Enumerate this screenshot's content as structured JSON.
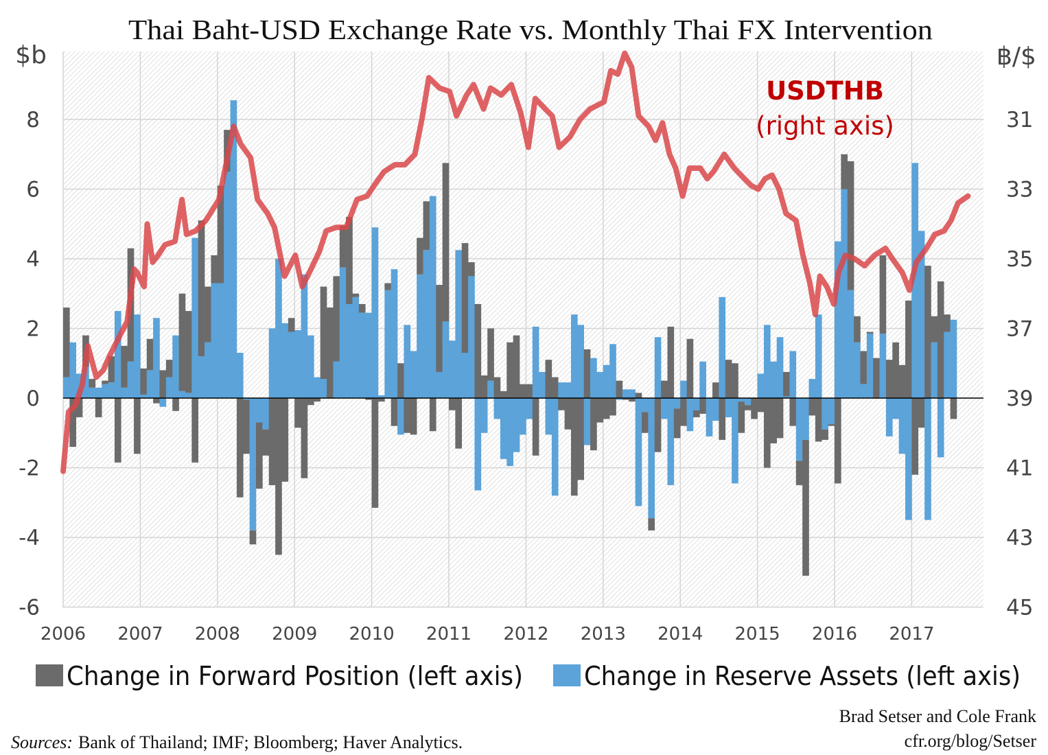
{
  "title": "Thai Baht-USD Exchange Rate vs. Monthly Thai FX Intervention",
  "left_axis_unit": "$b",
  "right_axis_unit": "฿/$",
  "annotation": {
    "line1": "USDTHB",
    "line2": "(right axis)",
    "color": "#c00000"
  },
  "legend": [
    {
      "label": "Change in Forward Position (left axis)",
      "color": "#6b6b6b"
    },
    {
      "label": "Change in Reserve Assets (left axis)",
      "color": "#5ba3d9"
    }
  ],
  "credit": {
    "authors": "Brad Setser and Cole Frank",
    "url": "cfr.org/blog/Setser"
  },
  "sources": {
    "label": "Sources:",
    "text": "Bank of Thailand; IMF; Bloomberg; Haver Analytics."
  },
  "chart_data": {
    "type": "bar+line",
    "title": "Thai Baht-USD Exchange Rate vs. Monthly Thai FX Intervention",
    "bar_mode": "stacked, monthly",
    "left_axis": {
      "label": "$b",
      "ylim": [
        -6,
        10
      ],
      "ticks": [
        "-6",
        "-4",
        "-2",
        "0",
        "2",
        "4",
        "6",
        "8"
      ]
    },
    "right_axis": {
      "label": "฿/$",
      "ylim": [
        45,
        29
      ],
      "inverted": true,
      "ticks": [
        "31",
        "33",
        "35",
        "37",
        "39",
        "41",
        "43",
        "45"
      ]
    },
    "x_axis": {
      "ticks": [
        "2006",
        "2007",
        "2008",
        "2009",
        "2010",
        "2011",
        "2012",
        "2013",
        "2014",
        "2015",
        "2016",
        "2017"
      ],
      "range": [
        2006,
        2017.92
      ]
    },
    "grid": true,
    "legend_position": "bottom",
    "bar_series_names": {
      "forward": "Change in Forward Position (left axis)",
      "reserve": "Change in Reserve Assets (left axis)"
    },
    "bars": [
      {
        "year": 2006,
        "reserve": [
          0.6,
          1.6,
          0.7,
          0.9,
          0.3,
          0.3,
          0.4,
          0.45,
          2.5,
          0.3,
          1.05,
          2.4
        ],
        "forward": [
          2.0,
          -1.4,
          -0.55,
          0.9,
          0.25,
          -0.55,
          0.1,
          0.75,
          -1.85,
          1.2,
          3.25,
          -1.6
        ]
      },
      {
        "year": 2007,
        "reserve": [
          0.1,
          0.8,
          2.3,
          -0.25,
          0.6,
          1.8,
          0.2,
          0.15,
          4.6,
          1.2,
          1.6,
          3.3
        ],
        "forward": [
          0.75,
          0.9,
          -0.15,
          0.8,
          0.5,
          -0.37,
          2.8,
          2.35,
          -1.85,
          3.9,
          1.6,
          0.8
        ]
      },
      {
        "year": 2008,
        "reserve": [
          3.3,
          6.5,
          8.55,
          1.3,
          -0.05,
          -3.8,
          -0.7,
          -0.9,
          2.0,
          4.0,
          2.15,
          1.9
        ],
        "forward": [
          2.8,
          1.2,
          0,
          -2.85,
          -1.55,
          -0.4,
          -1.9,
          -0.75,
          -2.5,
          -4.5,
          -2.4,
          0.4
        ]
      },
      {
        "year": 2009,
        "reserve": [
          1.95,
          3.55,
          1.8,
          0.6,
          0.55,
          0,
          1.05,
          3.75,
          2.7,
          2.9,
          2.45,
          2.45
        ],
        "forward": [
          -0.85,
          -2.3,
          -0.2,
          -0.1,
          2.65,
          2.6,
          2.45,
          1.2,
          2.5,
          0.1,
          0.25,
          -0.05
        ]
      },
      {
        "year": 2010,
        "reserve": [
          4.9,
          0.08,
          3.1,
          3.7,
          -1.05,
          2.1,
          1.35,
          3.55,
          4.25,
          5.8,
          0.75,
          2.2
        ],
        "forward": [
          -3.15,
          -0.1,
          0.2,
          -0.8,
          1.0,
          -1.0,
          -1.05,
          1.05,
          1.4,
          -0.95,
          2.5,
          4.55
        ]
      },
      {
        "year": 2011,
        "reserve": [
          1.65,
          4.25,
          1.3,
          3.5,
          -2.65,
          -1.0,
          0.5,
          -0.6,
          -1.75,
          -1.95,
          -1.55,
          -1.05
        ],
        "forward": [
          -0.35,
          -1.45,
          3.15,
          0.4,
          2.7,
          0.65,
          1.5,
          0.6,
          0.2,
          1.6,
          1.8,
          0.4
        ]
      },
      {
        "year": 2012,
        "reserve": [
          -0.6,
          2.05,
          0.75,
          -1.05,
          -2.8,
          0.45,
          0.45,
          2.4,
          2.1,
          -1.35,
          1.15,
          0.75
        ],
        "forward": [
          0.4,
          -1.65,
          0,
          1.1,
          0.6,
          -0.35,
          -0.9,
          -2.8,
          -2.35,
          1.4,
          -1.5,
          -0.7
        ]
      },
      {
        "year": 2013,
        "reserve": [
          0.95,
          1.55,
          -0.05,
          0.25,
          0.25,
          -3.1,
          -0.4,
          -3.45,
          1.75,
          -0.6,
          -2.5,
          -0.3
        ],
        "forward": [
          -0.6,
          -0.5,
          0.5,
          -0.05,
          -0.1,
          0.15,
          -0.6,
          -0.35,
          -1.55,
          0.5,
          2.05,
          -0.85
        ]
      },
      {
        "year": 2014,
        "reserve": [
          0.5,
          -0.95,
          -0.35,
          1.05,
          -1.1,
          -0.65,
          2.9,
          -0.55,
          -2.45,
          -0.1,
          -0.2,
          0
        ],
        "forward": [
          -0.8,
          1.7,
          -0.2,
          -0.45,
          0,
          0.45,
          -1.2,
          1.1,
          1.0,
          -0.9,
          -0.15,
          -0.6
        ]
      },
      {
        "year": 2015,
        "reserve": [
          0.7,
          2.1,
          1.05,
          1.75,
          0.05,
          1.35,
          -1.8,
          -1.2,
          0.55,
          2.4,
          -0.9,
          -0.75
        ],
        "forward": [
          -0.4,
          -2.0,
          -1.3,
          -1.15,
          0.7,
          -0.8,
          -0.7,
          -3.9,
          -0.5,
          -1.25,
          -0.3,
          -0.05
        ]
      },
      {
        "year": 2016,
        "reserve": [
          4.5,
          6.0,
          3.1,
          1.6,
          0.4,
          1.85,
          0,
          1.85,
          -1.1,
          -0.6,
          -1.6,
          -3.5
        ],
        "forward": [
          -2.45,
          1.0,
          3.7,
          0.75,
          0.95,
          0.05,
          1.15,
          2.25,
          1.1,
          1.6,
          0.95,
          2.8
        ]
      },
      {
        "year": 2017,
        "reserve": [
          6.75,
          4.8,
          -3.5,
          1.6,
          -1.7,
          1.9,
          2.25
        ],
        "forward": [
          -2.2,
          -0.85,
          3.8,
          0.75,
          3.35,
          0.5,
          -0.6
        ]
      }
    ],
    "line": {
      "name": "USDTHB",
      "axis": "right",
      "color": "#d9484a",
      "points": [
        [
          2006.0,
          41.1
        ],
        [
          2006.07,
          39.4
        ],
        [
          2006.16,
          39.2
        ],
        [
          2006.25,
          38.6
        ],
        [
          2006.32,
          37.5
        ],
        [
          2006.43,
          38.4
        ],
        [
          2006.52,
          38.2
        ],
        [
          2006.6,
          37.8
        ],
        [
          2006.69,
          37.4
        ],
        [
          2006.83,
          36.8
        ],
        [
          2006.92,
          35.3
        ],
        [
          2006.96,
          35.4
        ],
        [
          2007.05,
          35.8
        ],
        [
          2007.09,
          34.0
        ],
        [
          2007.16,
          35.1
        ],
        [
          2007.23,
          34.9
        ],
        [
          2007.32,
          34.6
        ],
        [
          2007.45,
          34.5
        ],
        [
          2007.54,
          33.3
        ],
        [
          2007.6,
          34.3
        ],
        [
          2007.72,
          34.2
        ],
        [
          2007.85,
          33.9
        ],
        [
          2008.02,
          33.3
        ],
        [
          2008.12,
          32.2
        ],
        [
          2008.21,
          31.2
        ],
        [
          2008.3,
          31.7
        ],
        [
          2008.43,
          32.1
        ],
        [
          2008.52,
          33.3
        ],
        [
          2008.65,
          33.7
        ],
        [
          2008.74,
          34.1
        ],
        [
          2008.87,
          35.5
        ],
        [
          2009.01,
          34.9
        ],
        [
          2009.1,
          35.8
        ],
        [
          2009.19,
          35.4
        ],
        [
          2009.32,
          34.8
        ],
        [
          2009.41,
          34.2
        ],
        [
          2009.54,
          34.1
        ],
        [
          2009.67,
          34.1
        ],
        [
          2009.81,
          33.3
        ],
        [
          2009.94,
          33.2
        ],
        [
          2010.03,
          32.9
        ],
        [
          2010.16,
          32.5
        ],
        [
          2010.3,
          32.3
        ],
        [
          2010.43,
          32.3
        ],
        [
          2010.56,
          32.0
        ],
        [
          2010.65,
          31.0
        ],
        [
          2010.74,
          29.8
        ],
        [
          2010.88,
          30.1
        ],
        [
          2011.01,
          30.2
        ],
        [
          2011.1,
          30.9
        ],
        [
          2011.23,
          30.3
        ],
        [
          2011.32,
          30.0
        ],
        [
          2011.45,
          30.7
        ],
        [
          2011.54,
          30.1
        ],
        [
          2011.68,
          30.3
        ],
        [
          2011.81,
          30.0
        ],
        [
          2011.93,
          30.8
        ],
        [
          2012.03,
          31.8
        ],
        [
          2012.12,
          30.4
        ],
        [
          2012.25,
          30.7
        ],
        [
          2012.34,
          30.9
        ],
        [
          2012.43,
          31.8
        ],
        [
          2012.57,
          31.5
        ],
        [
          2012.7,
          31.0
        ],
        [
          2012.83,
          30.7
        ],
        [
          2013.01,
          30.5
        ],
        [
          2013.1,
          29.6
        ],
        [
          2013.19,
          29.7
        ],
        [
          2013.28,
          29.1
        ],
        [
          2013.37,
          29.5
        ],
        [
          2013.46,
          30.9
        ],
        [
          2013.59,
          31.2
        ],
        [
          2013.68,
          31.6
        ],
        [
          2013.77,
          31.1
        ],
        [
          2013.86,
          32.0
        ],
        [
          2013.94,
          32.4
        ],
        [
          2014.03,
          33.2
        ],
        [
          2014.12,
          32.4
        ],
        [
          2014.26,
          32.4
        ],
        [
          2014.35,
          32.7
        ],
        [
          2014.43,
          32.5
        ],
        [
          2014.57,
          32.0
        ],
        [
          2014.7,
          32.4
        ],
        [
          2014.83,
          32.7
        ],
        [
          2014.92,
          32.9
        ],
        [
          2015.01,
          33.0
        ],
        [
          2015.1,
          32.7
        ],
        [
          2015.19,
          32.6
        ],
        [
          2015.28,
          33.0
        ],
        [
          2015.37,
          33.7
        ],
        [
          2015.5,
          33.9
        ],
        [
          2015.59,
          34.9
        ],
        [
          2015.68,
          35.7
        ],
        [
          2015.75,
          36.6
        ],
        [
          2015.81,
          35.5
        ],
        [
          2015.9,
          35.8
        ],
        [
          2015.99,
          36.3
        ],
        [
          2016.05,
          35.4
        ],
        [
          2016.14,
          34.9
        ],
        [
          2016.26,
          35.0
        ],
        [
          2016.39,
          35.2
        ],
        [
          2016.52,
          34.9
        ],
        [
          2016.66,
          34.7
        ],
        [
          2016.75,
          35.0
        ],
        [
          2016.88,
          35.4
        ],
        [
          2016.97,
          35.9
        ],
        [
          2017.06,
          35.1
        ],
        [
          2017.19,
          34.7
        ],
        [
          2017.3,
          34.3
        ],
        [
          2017.42,
          34.2
        ],
        [
          2017.51,
          33.9
        ],
        [
          2017.6,
          33.4
        ],
        [
          2017.73,
          33.2
        ]
      ]
    }
  }
}
